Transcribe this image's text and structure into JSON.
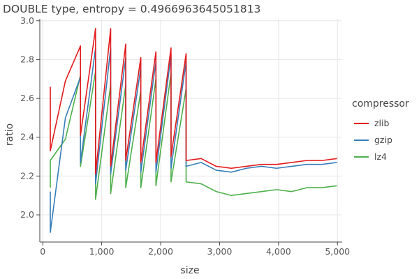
{
  "chart_data": {
    "type": "line",
    "title": "DOUBLE type, entropy = 0.4966963645051813",
    "xlabel": "size",
    "ylabel": "ratio",
    "xlim": [
      -50,
      5080
    ],
    "ylim": [
      1.86,
      3.01
    ],
    "xticks": [
      0,
      1000,
      2000,
      3000,
      4000,
      5000
    ],
    "xtick_labels": [
      "0",
      "1,000",
      "2,000",
      "3,000",
      "4,000",
      "5,000"
    ],
    "yticks": [
      2.0,
      2.2,
      2.4,
      2.6,
      2.8,
      3.0
    ],
    "ytick_labels": [
      "2.0",
      "2.2",
      "2.4",
      "2.6",
      "2.8",
      "3.0"
    ],
    "grid": true,
    "legend": {
      "title": "compressor",
      "position": "right"
    },
    "series": [
      {
        "name": "zlib",
        "color": "#e41a1c",
        "x": [
          128,
          128,
          384,
          640,
          640,
          896,
          896,
          1152,
          1152,
          1408,
          1408,
          1664,
          1664,
          1920,
          1920,
          2176,
          2176,
          2432,
          2432,
          2688,
          2944,
          3200,
          3456,
          3712,
          3968,
          4224,
          4480,
          4736,
          4992
        ],
        "y": [
          2.66,
          2.33,
          2.69,
          2.87,
          2.41,
          2.96,
          2.21,
          2.96,
          2.25,
          2.88,
          2.28,
          2.81,
          2.27,
          2.84,
          2.27,
          2.86,
          2.3,
          2.83,
          2.28,
          2.29,
          2.25,
          2.24,
          2.25,
          2.26,
          2.26,
          2.27,
          2.28,
          2.28,
          2.29
        ]
      },
      {
        "name": "gzip",
        "color": "#377eb8",
        "x": [
          128,
          128,
          384,
          640,
          640,
          896,
          896,
          1152,
          1152,
          1408,
          1408,
          1664,
          1664,
          1920,
          1920,
          2176,
          2176,
          2432,
          2432,
          2688,
          2944,
          3200,
          3456,
          3712,
          3968,
          4224,
          4480,
          4736,
          4992
        ],
        "y": [
          2.12,
          1.91,
          2.5,
          2.71,
          2.27,
          2.86,
          2.16,
          2.86,
          2.21,
          2.81,
          2.23,
          2.76,
          2.22,
          2.79,
          2.22,
          2.82,
          2.24,
          2.79,
          2.25,
          2.27,
          2.23,
          2.22,
          2.24,
          2.25,
          2.24,
          2.25,
          2.26,
          2.26,
          2.27
        ]
      },
      {
        "name": "lz4",
        "color": "#4daf4a",
        "x": [
          128,
          128,
          384,
          640,
          640,
          896,
          896,
          1152,
          1152,
          1408,
          1408,
          1664,
          1664,
          1920,
          1920,
          2176,
          2176,
          2432,
          2432,
          2688,
          2944,
          3200,
          3456,
          3712,
          3968,
          4224,
          4480,
          4736,
          4992
        ],
        "y": [
          2.14,
          2.28,
          2.39,
          2.72,
          2.25,
          2.74,
          2.08,
          2.67,
          2.11,
          2.67,
          2.14,
          2.64,
          2.14,
          2.7,
          2.15,
          2.73,
          2.17,
          2.65,
          2.17,
          2.16,
          2.12,
          2.1,
          2.11,
          2.12,
          2.13,
          2.12,
          2.14,
          2.14,
          2.15
        ]
      }
    ]
  }
}
